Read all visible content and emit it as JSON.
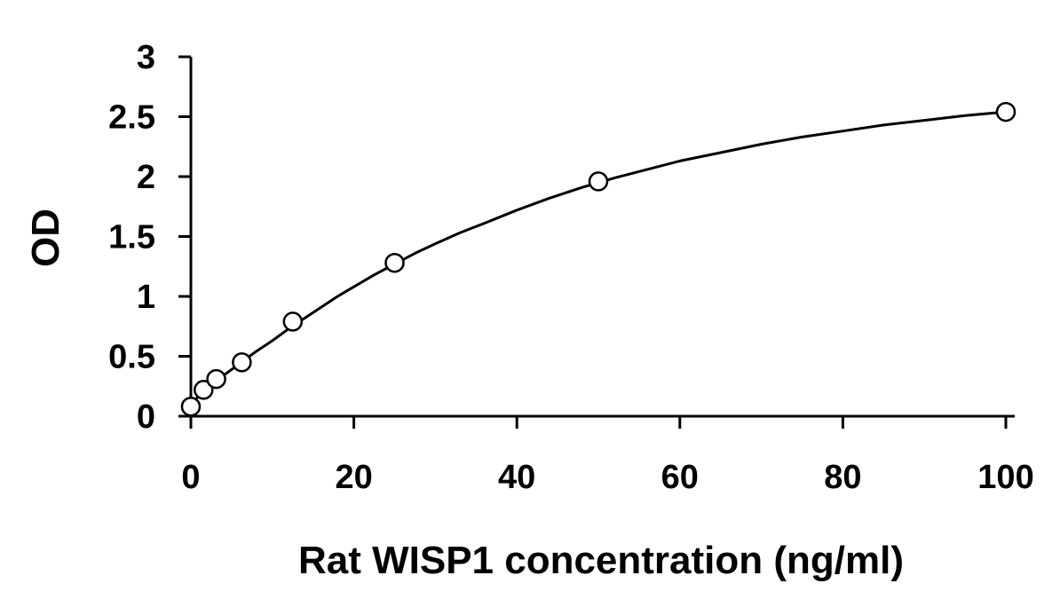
{
  "chart_data": {
    "type": "scatter",
    "title": "",
    "xlabel": "Rat WISP1 concentration (ng/ml)",
    "ylabel": "OD",
    "xlim": [
      0,
      100
    ],
    "ylim": [
      0,
      3
    ],
    "x_ticks": [
      0,
      20,
      40,
      60,
      80,
      100
    ],
    "y_ticks": [
      0,
      0.5,
      1,
      1.5,
      2,
      2.5,
      3
    ],
    "grid": false,
    "legend": "none",
    "series": [
      {
        "points": {
          "x": [
            0,
            1.56,
            3.12,
            6.25,
            12.5,
            25,
            50,
            100
          ],
          "y": [
            0.08,
            0.22,
            0.31,
            0.45,
            0.79,
            1.28,
            1.96,
            2.54
          ]
        },
        "curve": {
          "x": [
            0,
            1,
            2,
            3,
            4,
            5,
            6,
            8,
            10,
            12,
            14,
            16,
            18,
            20,
            22.5,
            25,
            27.5,
            30,
            33,
            36,
            40,
            44,
            48,
            52,
            56,
            60,
            65,
            70,
            75,
            80,
            85,
            90,
            95,
            100
          ],
          "y": [
            0.1,
            0.17,
            0.23,
            0.29,
            0.34,
            0.39,
            0.44,
            0.54,
            0.63,
            0.73,
            0.82,
            0.91,
            1.0,
            1.08,
            1.18,
            1.27,
            1.36,
            1.44,
            1.53,
            1.61,
            1.72,
            1.82,
            1.91,
            1.99,
            2.06,
            2.13,
            2.2,
            2.27,
            2.33,
            2.38,
            2.43,
            2.47,
            2.51,
            2.54
          ]
        }
      }
    ],
    "colors": {
      "axis": "#000000",
      "curve": "#000000",
      "marker_stroke": "#000000",
      "marker_fill": "#ffffff"
    }
  }
}
